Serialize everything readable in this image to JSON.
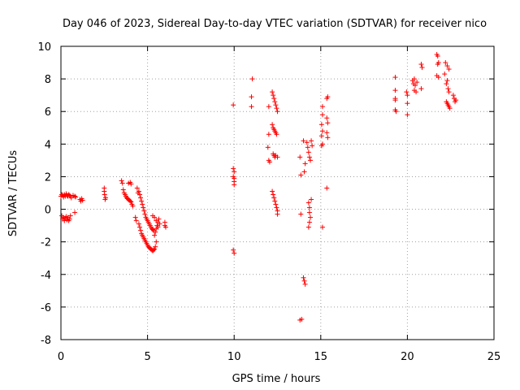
{
  "chart_data": {
    "type": "scatter",
    "title": "Day 046 of 2023, Sidereal Day-to-day VTEC variation (SDTVAR) for receiver nico",
    "xlabel": "GPS time / hours",
    "ylabel": "SDTVAR / TECUs",
    "xlim": [
      0,
      25
    ],
    "ylim": [
      -8,
      10
    ],
    "xticks": [
      0,
      5,
      10,
      15,
      20,
      25
    ],
    "yticks": [
      -8,
      -6,
      -4,
      -2,
      0,
      2,
      4,
      6,
      8,
      10
    ],
    "grid": true,
    "marker": "+",
    "color": "#ff0000",
    "series": [
      {
        "name": "SDTVAR",
        "points": [
          [
            0.0,
            0.8
          ],
          [
            0.05,
            0.9
          ],
          [
            0.1,
            0.85
          ],
          [
            0.15,
            0.75
          ],
          [
            0.2,
            0.9
          ],
          [
            0.25,
            0.8
          ],
          [
            0.3,
            0.95
          ],
          [
            0.35,
            0.85
          ],
          [
            0.4,
            0.8
          ],
          [
            0.45,
            0.9
          ],
          [
            0.5,
            0.85
          ],
          [
            0.55,
            0.8
          ],
          [
            0.6,
            0.7
          ],
          [
            0.7,
            0.85
          ],
          [
            0.8,
            0.8
          ],
          [
            0.85,
            0.75
          ],
          [
            0.05,
            -0.4
          ],
          [
            0.1,
            -0.6
          ],
          [
            0.15,
            -0.5
          ],
          [
            0.2,
            -0.7
          ],
          [
            0.25,
            -0.55
          ],
          [
            0.3,
            -0.45
          ],
          [
            0.35,
            -0.65
          ],
          [
            0.4,
            -0.5
          ],
          [
            0.45,
            -0.7
          ],
          [
            0.5,
            -0.6
          ],
          [
            0.55,
            -0.4
          ],
          [
            0.8,
            -0.2
          ],
          [
            1.1,
            0.6
          ],
          [
            1.15,
            0.5
          ],
          [
            1.2,
            0.65
          ],
          [
            1.25,
            0.55
          ],
          [
            2.5,
            1.3
          ],
          [
            2.5,
            1.1
          ],
          [
            2.52,
            0.9
          ],
          [
            2.55,
            0.6
          ],
          [
            2.58,
            0.7
          ],
          [
            3.5,
            1.75
          ],
          [
            3.55,
            1.6
          ],
          [
            3.6,
            1.2
          ],
          [
            3.65,
            1.0
          ],
          [
            3.7,
            0.9
          ],
          [
            3.75,
            0.8
          ],
          [
            3.8,
            0.7
          ],
          [
            3.85,
            0.65
          ],
          [
            3.9,
            0.6
          ],
          [
            3.95,
            0.55
          ],
          [
            4.0,
            0.5
          ],
          [
            4.05,
            0.45
          ],
          [
            4.1,
            0.3
          ],
          [
            4.15,
            0.2
          ],
          [
            3.9,
            1.6
          ],
          [
            4.0,
            1.65
          ],
          [
            4.05,
            1.55
          ],
          [
            4.3,
            -0.5
          ],
          [
            4.35,
            -0.7
          ],
          [
            4.4,
            1.3
          ],
          [
            4.45,
            1.0
          ],
          [
            4.5,
            1.1
          ],
          [
            4.55,
            0.9
          ],
          [
            4.6,
            0.7
          ],
          [
            4.65,
            0.5
          ],
          [
            4.7,
            0.3
          ],
          [
            4.75,
            0.1
          ],
          [
            4.8,
            -0.1
          ],
          [
            4.85,
            -0.3
          ],
          [
            4.9,
            -0.5
          ],
          [
            4.95,
            -0.6
          ],
          [
            5.0,
            -0.7
          ],
          [
            5.05,
            -0.8
          ],
          [
            5.1,
            -0.9
          ],
          [
            5.15,
            -1.0
          ],
          [
            5.2,
            -1.1
          ],
          [
            5.25,
            -1.2
          ],
          [
            5.3,
            -1.25
          ],
          [
            5.35,
            -1.3
          ],
          [
            4.5,
            -0.9
          ],
          [
            4.55,
            -1.1
          ],
          [
            4.6,
            -1.3
          ],
          [
            4.65,
            -1.5
          ],
          [
            4.7,
            -1.6
          ],
          [
            4.75,
            -1.7
          ],
          [
            4.8,
            -1.8
          ],
          [
            4.85,
            -1.9
          ],
          [
            4.9,
            -2.0
          ],
          [
            4.95,
            -2.1
          ],
          [
            5.0,
            -2.2
          ],
          [
            5.05,
            -2.3
          ],
          [
            5.1,
            -2.35
          ],
          [
            5.15,
            -2.4
          ],
          [
            5.2,
            -2.45
          ],
          [
            5.25,
            -2.5
          ],
          [
            5.3,
            -2.55
          ],
          [
            5.35,
            -2.5
          ],
          [
            5.4,
            -2.45
          ],
          [
            5.45,
            -2.3
          ],
          [
            5.5,
            -2.0
          ],
          [
            5.4,
            -1.6
          ],
          [
            5.45,
            -1.4
          ],
          [
            5.5,
            -1.2
          ],
          [
            5.55,
            -1.0
          ],
          [
            5.6,
            -0.8
          ],
          [
            5.65,
            -0.6
          ],
          [
            5.4,
            -0.5
          ],
          [
            5.5,
            -0.7
          ],
          [
            5.3,
            -0.4
          ],
          [
            5.6,
            -1.1
          ],
          [
            5.7,
            -0.9
          ],
          [
            6.0,
            -0.8
          ],
          [
            6.0,
            -1.0
          ],
          [
            6.05,
            -1.1
          ],
          [
            9.95,
            6.4
          ],
          [
            9.95,
            2.5
          ],
          [
            10.0,
            2.3
          ],
          [
            9.95,
            2.0
          ],
          [
            10.0,
            1.9
          ],
          [
            10.0,
            1.7
          ],
          [
            10.0,
            1.5
          ],
          [
            9.95,
            -2.5
          ],
          [
            10.0,
            -2.7
          ],
          [
            11.05,
            8.0
          ],
          [
            11.0,
            6.9
          ],
          [
            11.0,
            6.3
          ],
          [
            12.0,
            6.3
          ],
          [
            12.0,
            4.6
          ],
          [
            11.95,
            3.8
          ],
          [
            12.0,
            3.0
          ],
          [
            12.05,
            2.9
          ],
          [
            12.2,
            7.2
          ],
          [
            12.25,
            7.0
          ],
          [
            12.3,
            6.8
          ],
          [
            12.35,
            6.6
          ],
          [
            12.4,
            6.4
          ],
          [
            12.45,
            6.2
          ],
          [
            12.5,
            6.0
          ],
          [
            12.2,
            5.2
          ],
          [
            12.25,
            5.0
          ],
          [
            12.3,
            4.9
          ],
          [
            12.35,
            4.8
          ],
          [
            12.4,
            4.7
          ],
          [
            12.45,
            4.6
          ],
          [
            12.25,
            3.4
          ],
          [
            12.3,
            3.3
          ],
          [
            12.35,
            3.2
          ],
          [
            12.4,
            3.3
          ],
          [
            12.5,
            3.2
          ],
          [
            12.2,
            1.1
          ],
          [
            12.25,
            0.9
          ],
          [
            12.3,
            0.7
          ],
          [
            12.35,
            0.5
          ],
          [
            12.4,
            0.3
          ],
          [
            12.45,
            0.1
          ],
          [
            12.5,
            -0.1
          ],
          [
            12.5,
            -0.3
          ],
          [
            13.85,
            -0.3
          ],
          [
            13.8,
            -6.8
          ],
          [
            13.9,
            -6.75
          ],
          [
            13.85,
            2.1
          ],
          [
            13.8,
            3.2
          ],
          [
            14.0,
            4.2
          ],
          [
            14.1,
            2.8
          ],
          [
            14.05,
            2.3
          ],
          [
            14.0,
            -4.2
          ],
          [
            14.05,
            -4.4
          ],
          [
            14.1,
            -4.6
          ],
          [
            14.2,
            4.1
          ],
          [
            14.25,
            3.8
          ],
          [
            14.3,
            3.5
          ],
          [
            14.35,
            3.2
          ],
          [
            14.4,
            3.0
          ],
          [
            14.45,
            4.2
          ],
          [
            14.5,
            3.9
          ],
          [
            14.3,
            0.4
          ],
          [
            14.35,
            0.1
          ],
          [
            14.35,
            -0.2
          ],
          [
            14.4,
            -0.5
          ],
          [
            14.35,
            -0.8
          ],
          [
            14.3,
            -1.1
          ],
          [
            14.45,
            0.6
          ],
          [
            15.1,
            6.3
          ],
          [
            15.1,
            5.8
          ],
          [
            15.05,
            5.2
          ],
          [
            15.1,
            4.8
          ],
          [
            15.05,
            4.5
          ],
          [
            15.1,
            4.0
          ],
          [
            15.05,
            3.9
          ],
          [
            15.1,
            -1.1
          ],
          [
            15.35,
            6.8
          ],
          [
            15.4,
            6.9
          ],
          [
            15.35,
            5.6
          ],
          [
            15.4,
            5.3
          ],
          [
            15.35,
            4.7
          ],
          [
            15.4,
            4.4
          ],
          [
            15.35,
            1.3
          ],
          [
            19.3,
            8.1
          ],
          [
            19.3,
            7.3
          ],
          [
            19.3,
            6.8
          ],
          [
            19.3,
            6.7
          ],
          [
            19.3,
            6.1
          ],
          [
            19.35,
            6.0
          ],
          [
            19.95,
            7.2
          ],
          [
            20.0,
            7.0
          ],
          [
            20.0,
            6.5
          ],
          [
            20.0,
            5.8
          ],
          [
            20.3,
            7.9
          ],
          [
            20.35,
            7.7
          ],
          [
            20.4,
            8.0
          ],
          [
            20.45,
            7.6
          ],
          [
            20.4,
            7.3
          ],
          [
            20.5,
            7.2
          ],
          [
            20.55,
            7.8
          ],
          [
            20.8,
            8.9
          ],
          [
            20.85,
            8.7
          ],
          [
            20.8,
            7.4
          ],
          [
            21.7,
            9.5
          ],
          [
            21.75,
            9.4
          ],
          [
            21.8,
            9.0
          ],
          [
            21.75,
            8.9
          ],
          [
            21.7,
            8.2
          ],
          [
            21.8,
            8.1
          ],
          [
            22.2,
            9.0
          ],
          [
            22.3,
            8.8
          ],
          [
            22.4,
            8.6
          ],
          [
            22.25,
            7.7
          ],
          [
            22.35,
            7.4
          ],
          [
            22.4,
            7.2
          ],
          [
            22.3,
            7.9
          ],
          [
            22.15,
            8.3
          ],
          [
            22.25,
            6.6
          ],
          [
            22.3,
            6.5
          ],
          [
            22.35,
            6.4
          ],
          [
            22.4,
            6.3
          ],
          [
            22.45,
            6.2
          ],
          [
            22.65,
            7.0
          ],
          [
            22.7,
            6.8
          ],
          [
            22.75,
            6.6
          ],
          [
            22.8,
            6.7
          ]
        ]
      }
    ]
  }
}
